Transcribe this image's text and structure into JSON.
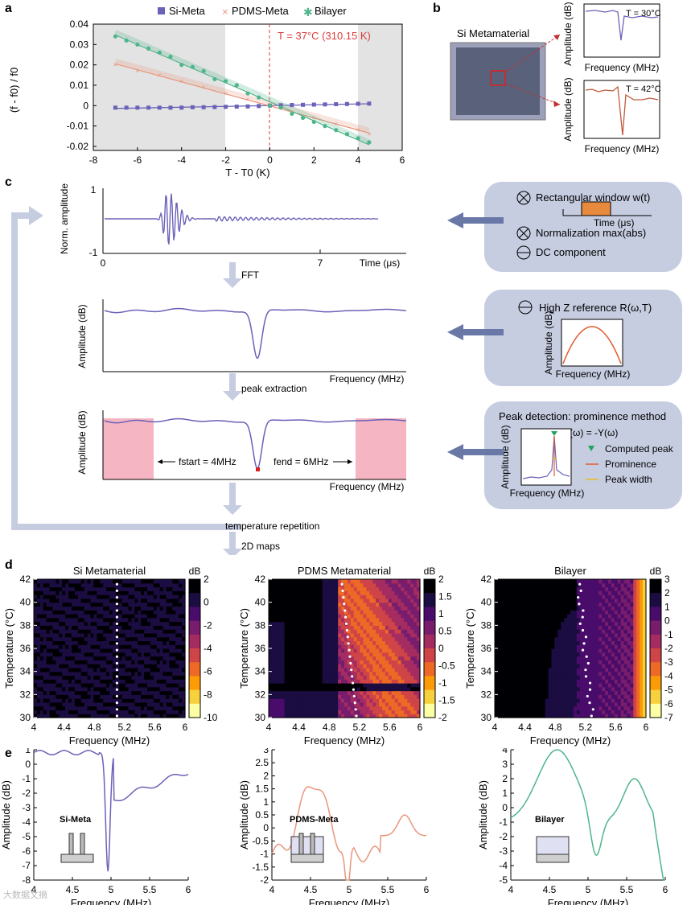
{
  "labels": {
    "a": "a",
    "b": "b",
    "c": "c",
    "d": "d",
    "e": "e"
  },
  "watermark": "大数据文摘",
  "panel_a": {
    "title": "T = 37°C (310.15 K)",
    "ylabel": "(f - f0) / f0",
    "xlabel": "T - T0 (K)",
    "legend": [
      "Si-Meta",
      "PDMS-Meta",
      "Bilayer"
    ],
    "colors": {
      "si": "#6a62b8",
      "pdms": "#e8967c",
      "bilayer": "#4fb58a",
      "line": "#dc3b3b"
    },
    "xticks": [
      "-8",
      "-6",
      "-4",
      "-2",
      "0",
      "2",
      "4",
      "6"
    ],
    "yticks": [
      "0.04",
      "0.03",
      "0.02",
      "0.01",
      "0",
      "-0.01",
      "-0.02"
    ]
  },
  "panel_b": {
    "title": "Si Metamaterial",
    "inset_top": {
      "temp": "T = 30°C",
      "ylabel": "Amplitude (dB)",
      "xlabel": "Frequency (MHz)"
    },
    "inset_bottom": {
      "temp": "T = 42°C",
      "ylabel": "Amplitude (dB)",
      "xlabel": "Frequency (MHz)"
    }
  },
  "panel_c": {
    "time_plot": {
      "ylabel": "Norm. amplitude",
      "y_top": "1",
      "y_bottom": "-1",
      "x0": "0",
      "x7": "7",
      "xlabel": "Time (μs)"
    },
    "step_fft": "FFT",
    "fft_plot": {
      "ylabel": "Amplitude (dB)",
      "xlabel": "Frequency (MHz)"
    },
    "step_peak": "peak extraction",
    "peak_plot": {
      "ylabel": "Amplitude (dB)",
      "xlabel": "Frequency (MHz)",
      "f_start": "fstart = 4MHz",
      "f_end": "fend = 6MHz"
    },
    "step_repeat": "temperature repetition",
    "step_maps": "2D maps",
    "box1": {
      "item1": "Rectangular window w(t)",
      "inset_label": "Time (μs)",
      "item2": "Normalization max(abs)",
      "item3": "DC component"
    },
    "box2": {
      "item1": "High Z reference R(ω,T)",
      "ylabel": "Amplitude (dB)",
      "xlabel": "Frequency (MHz)"
    },
    "box3": {
      "title": "Peak detection: prominence method",
      "formula": "S(ω) = -Y(ω)",
      "ylabel": "Amplitude (dB)",
      "xlabel": "Frequency (MHz)",
      "legend1": "Computed peak",
      "legend2": "Prominence",
      "legend3": "Peak width"
    }
  },
  "panel_d": {
    "maps": [
      {
        "title": "Si Metamaterial",
        "cbar_unit": "dB",
        "cbar_ticks": [
          "2",
          "0",
          "-2",
          "-4",
          "-6",
          "-8",
          "-10"
        ]
      },
      {
        "title": "PDMS Metamaterial",
        "cbar_unit": "dB",
        "cbar_ticks": [
          "2",
          "1.5",
          "1",
          "0.5",
          "0",
          "-0.5",
          "-1",
          "-1.5",
          "-2"
        ]
      },
      {
        "title": "Bilayer",
        "cbar_unit": "dB",
        "cbar_ticks": [
          "3",
          "2",
          "1",
          "0",
          "-1",
          "-2",
          "-3",
          "-4",
          "-5",
          "-6",
          "-7"
        ]
      }
    ],
    "ylabel": "Temperature (°C)",
    "xlabel": "Frequency (MHz)",
    "yticks": [
      "42",
      "40",
      "38",
      "36",
      "34",
      "32",
      "30"
    ],
    "xticks": [
      "4",
      "4.4",
      "4.8",
      "5.2",
      "5.6",
      "6"
    ]
  },
  "panel_e": {
    "plots": [
      {
        "label": "Si-Meta",
        "color": "#6a62b8",
        "yticks": [
          "1",
          "0",
          "-1",
          "-2",
          "-3",
          "-4",
          "-5",
          "-6",
          "-7",
          "-8"
        ],
        "xticks": [
          "4",
          "4.5",
          "5",
          "5.5",
          "6"
        ]
      },
      {
        "label": "PDMS-Meta",
        "color": "#e8967c",
        "yticks": [
          "3",
          "2.5",
          "2",
          "1.5",
          "1",
          "0.5",
          "0",
          "-0.5",
          "-1",
          "-1.5",
          "-2"
        ],
        "xticks": [
          "4",
          "4.5",
          "5",
          "5.5",
          "6"
        ]
      },
      {
        "label": "Bilayer",
        "color": "#4fb58a",
        "yticks": [
          "4",
          "3",
          "2",
          "1",
          "0",
          "-1",
          "-2",
          "-3",
          "-4",
          "-5"
        ],
        "xticks": [
          "4",
          "4.5",
          "5",
          "5.5",
          "6"
        ]
      }
    ],
    "ylabel": "Amplitude (dB)",
    "xlabel": "Frequency (MHz)"
  },
  "chart_data": [
    {
      "type": "scatter",
      "title": "T = 37°C (310.15 K)",
      "xlabel": "T - T0 (K)",
      "ylabel": "(f - f0) / f0",
      "xlim": [
        -8,
        6
      ],
      "ylim": [
        -0.022,
        0.04
      ],
      "series": [
        {
          "name": "Si-Meta",
          "x": [
            -7,
            -6.5,
            -6,
            -5.5,
            -5,
            -4.5,
            -4,
            -3.5,
            -3,
            -2.5,
            -2,
            -1.5,
            -1,
            -0.5,
            0,
            0.5,
            1,
            1.5,
            2,
            2.5,
            3,
            3.5,
            4,
            4.5
          ],
          "y": [
            -0.001,
            -0.001,
            -0.001,
            -0.001,
            -0.001,
            -0.001,
            -0.001,
            -0.0008,
            -0.0008,
            -0.0007,
            -0.0006,
            -0.0005,
            -0.0004,
            -0.0002,
            0,
            0.0002,
            0.0003,
            0.0004,
            0.0005,
            0.0006,
            0.0007,
            0.0008,
            0.0009,
            0.001
          ]
        },
        {
          "name": "PDMS-Meta",
          "x": [
            -7,
            -6,
            -5,
            -4,
            -3,
            -2,
            -1,
            0,
            1,
            2,
            3,
            4,
            4.5
          ],
          "y": [
            0.02,
            0.017,
            0.015,
            0.012,
            0.009,
            0.006,
            0.003,
            0,
            -0.003,
            -0.006,
            -0.009,
            -0.012,
            -0.014
          ]
        },
        {
          "name": "Bilayer",
          "x": [
            -7,
            -6.5,
            -6,
            -5.5,
            -5,
            -4.5,
            -4,
            -3.5,
            -3,
            -2.5,
            -2,
            -1.5,
            -1,
            -0.5,
            0,
            0.5,
            1,
            1.5,
            2,
            2.5,
            3,
            3.5,
            4,
            4.5
          ],
          "y": [
            0.034,
            0.032,
            0.03,
            0.028,
            0.026,
            0.024,
            0.02,
            0.019,
            0.017,
            0.013,
            0.012,
            0.01,
            0.006,
            0.004,
            0,
            -0.001,
            -0.004,
            -0.006,
            -0.008,
            -0.01,
            -0.012,
            -0.014,
            -0.016,
            -0.018
          ]
        }
      ]
    }
  ]
}
